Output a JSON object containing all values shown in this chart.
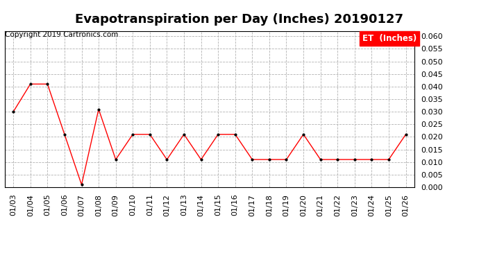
{
  "title": "Evapotranspiration per Day (Inches) 20190127",
  "copyright": "Copyright 2019 Cartronics.com",
  "legend_label": "ET  (Inches)",
  "legend_bg": "#FF0000",
  "legend_text_color": "#FFFFFF",
  "dates": [
    "01/03",
    "01/04",
    "01/05",
    "01/06",
    "01/07",
    "01/08",
    "01/09",
    "01/10",
    "01/11",
    "01/12",
    "01/13",
    "01/14",
    "01/15",
    "01/16",
    "01/17",
    "01/18",
    "01/19",
    "01/20",
    "01/21",
    "01/22",
    "01/23",
    "01/24",
    "01/25",
    "01/26"
  ],
  "values": [
    0.03,
    0.041,
    0.041,
    0.021,
    0.001,
    0.031,
    0.011,
    0.021,
    0.021,
    0.011,
    0.021,
    0.011,
    0.021,
    0.021,
    0.011,
    0.011,
    0.011,
    0.021,
    0.011,
    0.011,
    0.011,
    0.011,
    0.011,
    0.021
  ],
  "line_color": "#FF0000",
  "marker_color": "#000000",
  "ylim": [
    0.0,
    0.062
  ],
  "yticks": [
    0.0,
    0.005,
    0.01,
    0.015,
    0.02,
    0.025,
    0.03,
    0.035,
    0.04,
    0.045,
    0.05,
    0.055,
    0.06
  ],
  "bg_color": "#FFFFFF",
  "grid_color": "#AAAAAA",
  "title_fontsize": 13,
  "copyright_fontsize": 7.5,
  "tick_fontsize": 8,
  "legend_fontsize": 8.5
}
